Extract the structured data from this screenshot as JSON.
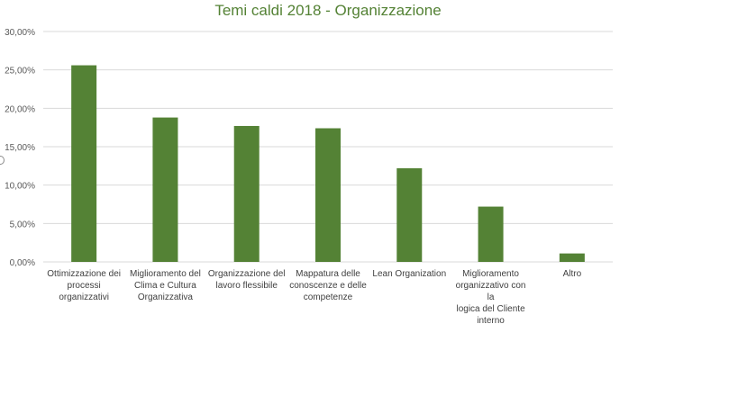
{
  "chart_data": {
    "type": "bar",
    "title": "Temi caldi 2018 - Organizzazione",
    "categories": [
      "Ottimizzazione dei processi organizzativi",
      "Miglioramento del Clima e Cultura Organizzativa",
      "Organizzazione del lavoro flessibile",
      "Mappatura delle conoscenze e delle competenze",
      "Lean Organization",
      "Miglioramento organizzativo con la logica del Cliente interno",
      "Altro"
    ],
    "category_lines": [
      [
        "Ottimizzazione dei",
        "processi",
        "organizzativi"
      ],
      [
        "Miglioramento del",
        "Clima e Cultura",
        "Organizzativa"
      ],
      [
        "Organizzazione del",
        "lavoro flessibile"
      ],
      [
        "Mappatura delle",
        "conoscenze e delle",
        "competenze"
      ],
      [
        "Lean Organization"
      ],
      [
        "Miglioramento",
        "organizzativo con la",
        "logica del Cliente",
        "interno"
      ],
      [
        "Altro"
      ]
    ],
    "values": [
      0.256,
      0.188,
      0.177,
      0.174,
      0.122,
      0.072,
      0.011
    ],
    "ylim": [
      0,
      0.3
    ],
    "yticks": [
      0,
      0.05,
      0.1,
      0.15,
      0.2,
      0.25,
      0.3
    ],
    "ytick_labels": [
      "0,00%",
      "5,00%",
      "10,00%",
      "15,00%",
      "20,00%",
      "25,00%",
      "30,00%"
    ],
    "bar_color": "#548235",
    "grid_color": "#d9d9d9",
    "grid": true,
    "legend": "none"
  }
}
